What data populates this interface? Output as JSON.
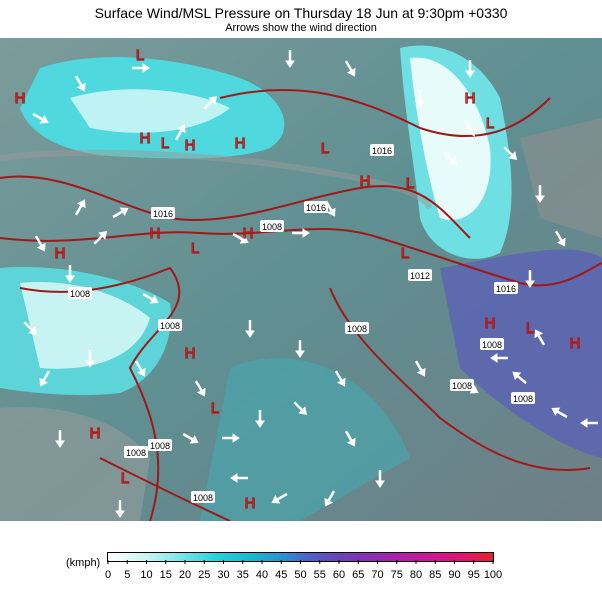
{
  "header": {
    "title": "Surface Wind/MSL Pressure on Thursday 18 Jun at 9:30pm +0330",
    "subtitle": "Arrows show the wind direction"
  },
  "legend": {
    "unit": "(kmph)",
    "ticks": [
      0,
      5,
      10,
      15,
      20,
      25,
      30,
      35,
      40,
      45,
      50,
      55,
      60,
      65,
      70,
      75,
      80,
      85,
      90,
      95,
      100
    ]
  },
  "isobar_labels": [
    "1016",
    "1016",
    "1008",
    "1016",
    "1008",
    "1012",
    "1016",
    "1008",
    "1008",
    "1008",
    "1008",
    "1008",
    "1008",
    "1008",
    "1008"
  ],
  "pressure_centers": [
    "H",
    "L",
    "H",
    "L",
    "H",
    "H",
    "L",
    "H",
    "L",
    "H",
    "L",
    "H",
    "L",
    "H",
    "H",
    "L",
    "H",
    "L",
    "H",
    "H",
    "L",
    "H",
    "L",
    "H"
  ]
}
